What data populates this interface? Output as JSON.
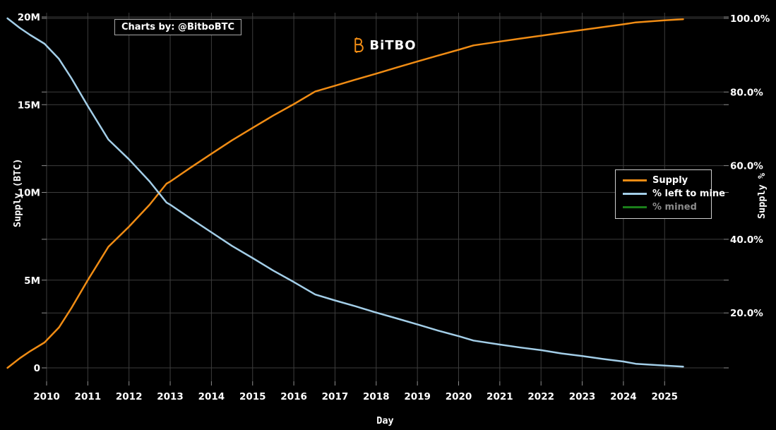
{
  "credit": {
    "text": "Charts by: @BitboBTC"
  },
  "logo": {
    "text": "BiTBO",
    "icon": "bitbo-b-icon",
    "color": "#f08c14"
  },
  "axes": {
    "x": {
      "title": "Day"
    },
    "left": {
      "title": "Supply (BTC)"
    },
    "right": {
      "title": "Supply %"
    }
  },
  "legend": {
    "items": [
      {
        "label": "Supply",
        "color": "#f08c14",
        "enabled": true
      },
      {
        "label": "% left to mine",
        "color": "#a3cee8",
        "enabled": true
      },
      {
        "label": "% mined",
        "color": "#1a7f1a",
        "enabled": false
      }
    ]
  },
  "colors": {
    "background": "#000000",
    "grid": "#3d3d3d",
    "tick_mark": "#8f8f8f",
    "text": "#ffffff",
    "disabled_text": "#8c8c8c",
    "legend_border": "#cfcfcf",
    "supply_orange": "#f08c14",
    "left_to_mine_blue": "#a3cee8",
    "mined_green": "#1a7f1a"
  },
  "chart_data": {
    "type": "line",
    "title": "",
    "xlabel": "Day",
    "ylabel_left": "Supply (BTC)",
    "ylabel_right": "Supply %",
    "grid": true,
    "legend_position": "right-middle",
    "x_ticks": [
      2010,
      2011,
      2012,
      2013,
      2014,
      2015,
      2016,
      2017,
      2018,
      2019,
      2020,
      2021,
      2022,
      2023,
      2024,
      2025
    ],
    "x_range": [
      2009.05,
      2025.45
    ],
    "left_axis": {
      "min": 0,
      "max": 20000000,
      "ticks": [
        {
          "value": 0,
          "label": "0"
        },
        {
          "value": 5000000,
          "label": "5M"
        },
        {
          "value": 10000000,
          "label": "10M"
        },
        {
          "value": 15000000,
          "label": "15M"
        },
        {
          "value": 20000000,
          "label": "20M"
        }
      ]
    },
    "right_axis": {
      "min": 0,
      "max": 100,
      "ticks": [
        {
          "value": 20,
          "label": "20.0%"
        },
        {
          "value": 40,
          "label": "40.0%"
        },
        {
          "value": 60,
          "label": "60.0%"
        },
        {
          "value": 80,
          "label": "80.0%"
        },
        {
          "value": 100,
          "label": "100.0%"
        }
      ]
    },
    "x": [
      2009.05,
      2009.35,
      2009.6,
      2009.95,
      2010.3,
      2010.6,
      2011.0,
      2011.5,
      2012.0,
      2012.5,
      2012.91,
      2013.0,
      2013.5,
      2014.0,
      2014.5,
      2015.0,
      2015.5,
      2016.0,
      2016.52,
      2017.0,
      2017.5,
      2018.0,
      2018.5,
      2019.0,
      2019.5,
      2020.0,
      2020.36,
      2021.0,
      2021.5,
      2022.0,
      2022.5,
      2023.0,
      2023.5,
      2024.0,
      2024.3,
      2025.0,
      2025.45
    ],
    "series": [
      {
        "name": "Supply",
        "axis": "left",
        "color": "#f08c14",
        "hidden": false,
        "values": [
          0,
          550000,
          950000,
          1450000,
          2300000,
          3400000,
          5000000,
          6900000,
          8050000,
          9300000,
          10500000,
          10620000,
          11420000,
          12200000,
          12970000,
          13680000,
          14380000,
          15030000,
          15750000,
          16080000,
          16430000,
          16770000,
          17120000,
          17460000,
          17800000,
          18130000,
          18380000,
          18600000,
          18770000,
          18930000,
          19100000,
          19260000,
          19420000,
          19580000,
          19690000,
          19810000,
          19870000
        ]
      },
      {
        "name": "% left to mine",
        "axis": "right",
        "color": "#a3cee8",
        "hidden": false,
        "values": [
          100.0,
          97.4,
          95.5,
          93.1,
          89.0,
          83.8,
          76.2,
          67.1,
          61.7,
          55.7,
          50.0,
          49.4,
          45.6,
          41.9,
          38.2,
          34.9,
          31.5,
          28.4,
          25.0,
          23.4,
          21.8,
          20.1,
          18.5,
          16.9,
          15.2,
          13.7,
          12.5,
          11.4,
          10.6,
          9.9,
          9.0,
          8.3,
          7.5,
          6.8,
          6.2,
          5.7,
          5.4
        ]
      },
      {
        "name": "% mined",
        "axis": "right",
        "color": "#1a7f1a",
        "hidden": true,
        "values": []
      }
    ]
  }
}
